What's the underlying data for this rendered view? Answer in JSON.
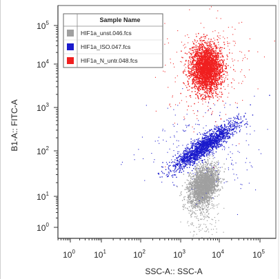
{
  "chart_data": {
    "type": "scatter",
    "xlabel": "SSC-A:: SSC-A",
    "ylabel": "B1-A:: FITC-A",
    "x_scale": "log",
    "y_scale": "log",
    "xlim": [
      1,
      100000
    ],
    "ylim": [
      1,
      100000
    ],
    "x_ticks": [
      {
        "base": "10",
        "exp": "0",
        "value": 1
      },
      {
        "base": "10",
        "exp": "1",
        "value": 10
      },
      {
        "base": "10",
        "exp": "2",
        "value": 100
      },
      {
        "base": "10",
        "exp": "3",
        "value": 1000
      },
      {
        "base": "10",
        "exp": "4",
        "value": 10000
      },
      {
        "base": "10",
        "exp": "5",
        "value": 100000
      }
    ],
    "y_ticks": [
      {
        "base": "10",
        "exp": "0",
        "value": 1
      },
      {
        "base": "10",
        "exp": "1",
        "value": 10
      },
      {
        "base": "10",
        "exp": "2",
        "value": 100
      },
      {
        "base": "10",
        "exp": "3",
        "value": 1000
      },
      {
        "base": "10",
        "exp": "4",
        "value": 10000
      },
      {
        "base": "10",
        "exp": "5",
        "value": 100000
      }
    ],
    "legend": {
      "title": "Sample Name",
      "position": "top-left"
    },
    "grid": false,
    "series": [
      {
        "name": "HIF1a_unst.046.fcs",
        "color": "#a0a0a0",
        "center": [
          4000,
          20
        ],
        "points": [
          [
            3500,
            30
          ],
          [
            4200,
            25
          ],
          [
            3000,
            15
          ],
          [
            5000,
            40
          ],
          [
            3800,
            10
          ],
          [
            4500,
            55
          ],
          [
            3300,
            20
          ],
          [
            6000,
            60
          ]
        ]
      },
      {
        "name": "HIF1a_ISO.047.fcs",
        "color": "#1a1acc",
        "center": [
          4000,
          130
        ],
        "points": [
          [
            2500,
            80
          ],
          [
            3500,
            120
          ],
          [
            5000,
            180
          ],
          [
            7000,
            260
          ],
          [
            9000,
            350
          ],
          [
            4000,
            140
          ],
          [
            3000,
            100
          ],
          [
            6000,
            220
          ]
        ]
      },
      {
        "name": "HIF1a_N_untr.048.fcs",
        "color": "#f02020",
        "center": [
          4500,
          8000
        ],
        "points": [
          [
            4000,
            9000
          ],
          [
            5000,
            7000
          ],
          [
            3500,
            6000
          ],
          [
            4800,
            12000
          ],
          [
            5500,
            10000
          ],
          [
            4200,
            5500
          ],
          [
            3800,
            8500
          ],
          [
            5200,
            15000
          ]
        ]
      }
    ]
  }
}
